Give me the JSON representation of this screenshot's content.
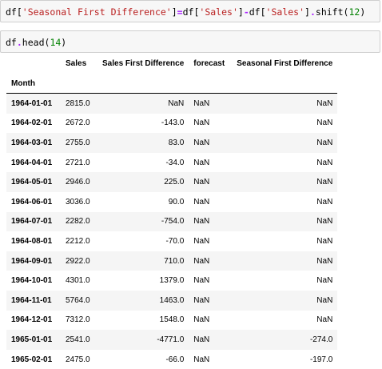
{
  "cells": [
    {
      "tokens": [
        {
          "t": "df",
          "k": "name"
        },
        {
          "t": "[",
          "k": "punc"
        },
        {
          "t": "'Seasonal First Difference'",
          "k": "str"
        },
        {
          "t": "]",
          "k": "punc"
        },
        {
          "t": "=",
          "k": "op"
        },
        {
          "t": "df",
          "k": "name"
        },
        {
          "t": "[",
          "k": "punc"
        },
        {
          "t": "'Sales'",
          "k": "str"
        },
        {
          "t": "]",
          "k": "punc"
        },
        {
          "t": "-",
          "k": "op"
        },
        {
          "t": "df",
          "k": "name"
        },
        {
          "t": "[",
          "k": "punc"
        },
        {
          "t": "'Sales'",
          "k": "str"
        },
        {
          "t": "]",
          "k": "punc"
        },
        {
          "t": ".",
          "k": "op"
        },
        {
          "t": "shift",
          "k": "name"
        },
        {
          "t": "(",
          "k": "punc"
        },
        {
          "t": "12",
          "k": "num"
        },
        {
          "t": ")",
          "k": "punc"
        }
      ]
    },
    {
      "tokens": [
        {
          "t": "df",
          "k": "name"
        },
        {
          "t": ".",
          "k": "op"
        },
        {
          "t": "head",
          "k": "name"
        },
        {
          "t": "(",
          "k": "punc"
        },
        {
          "t": "14",
          "k": "num"
        },
        {
          "t": ")",
          "k": "punc"
        }
      ]
    }
  ],
  "table": {
    "index_name": "Month",
    "columns": [
      "Sales",
      "Sales First Difference",
      "forecast",
      "Seasonal First Difference"
    ],
    "rows": [
      {
        "index": "1964-01-01",
        "values": [
          "2815.0",
          "NaN",
          "NaN",
          "NaN"
        ]
      },
      {
        "index": "1964-02-01",
        "values": [
          "2672.0",
          "-143.0",
          "NaN",
          "NaN"
        ]
      },
      {
        "index": "1964-03-01",
        "values": [
          "2755.0",
          "83.0",
          "NaN",
          "NaN"
        ]
      },
      {
        "index": "1964-04-01",
        "values": [
          "2721.0",
          "-34.0",
          "NaN",
          "NaN"
        ]
      },
      {
        "index": "1964-05-01",
        "values": [
          "2946.0",
          "225.0",
          "NaN",
          "NaN"
        ]
      },
      {
        "index": "1964-06-01",
        "values": [
          "3036.0",
          "90.0",
          "NaN",
          "NaN"
        ]
      },
      {
        "index": "1964-07-01",
        "values": [
          "2282.0",
          "-754.0",
          "NaN",
          "NaN"
        ]
      },
      {
        "index": "1964-08-01",
        "values": [
          "2212.0",
          "-70.0",
          "NaN",
          "NaN"
        ]
      },
      {
        "index": "1964-09-01",
        "values": [
          "2922.0",
          "710.0",
          "NaN",
          "NaN"
        ]
      },
      {
        "index": "1964-10-01",
        "values": [
          "4301.0",
          "1379.0",
          "NaN",
          "NaN"
        ]
      },
      {
        "index": "1964-11-01",
        "values": [
          "5764.0",
          "1463.0",
          "NaN",
          "NaN"
        ]
      },
      {
        "index": "1964-12-01",
        "values": [
          "7312.0",
          "1548.0",
          "NaN",
          "NaN"
        ]
      },
      {
        "index": "1965-01-01",
        "values": [
          "2541.0",
          "-4771.0",
          "NaN",
          "-274.0"
        ]
      },
      {
        "index": "1965-02-01",
        "values": [
          "2475.0",
          "-66.0",
          "NaN",
          "-197.0"
        ]
      }
    ]
  }
}
